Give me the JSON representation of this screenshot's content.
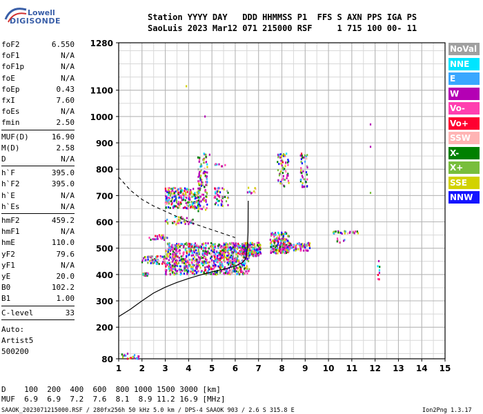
{
  "logo": {
    "line1": "Lowell",
    "line2": "DIGISONDE"
  },
  "header": {
    "line1": "Station YYYY DAY   DDD HHMMSS P1  FFS S AXN PPS IGA PS",
    "line2": "SaoLuis 2023 Mar12 071 215000 RSF     1 715 100 00- 11"
  },
  "params": {
    "group1": [
      {
        "k": "foF2",
        "v": "6.550"
      },
      {
        "k": "foF1",
        "v": "N/A"
      },
      {
        "k": "foF1p",
        "v": "N/A"
      },
      {
        "k": "foE",
        "v": "N/A"
      },
      {
        "k": "foEp",
        "v": "0.43"
      },
      {
        "k": "fxI",
        "v": "7.60"
      },
      {
        "k": "foEs",
        "v": "N/A"
      },
      {
        "k": "fmin",
        "v": "2.50"
      }
    ],
    "group2": [
      {
        "k": "MUF(D)",
        "v": "16.90"
      },
      {
        "k": "M(D)",
        "v": "2.58"
      },
      {
        "k": "D",
        "v": "N/A"
      }
    ],
    "group3": [
      {
        "k": "h`F",
        "v": "395.0"
      },
      {
        "k": "h`F2",
        "v": "395.0"
      },
      {
        "k": "h`E",
        "v": "N/A"
      },
      {
        "k": "h`Es",
        "v": "N/A"
      }
    ],
    "group4": [
      {
        "k": "hmF2",
        "v": "459.2"
      },
      {
        "k": "hmF1",
        "v": "N/A"
      },
      {
        "k": "hmE",
        "v": "110.0"
      },
      {
        "k": "yF2",
        "v": "79.6"
      },
      {
        "k": "yF1",
        "v": "N/A"
      },
      {
        "k": "yE",
        "v": "20.0"
      },
      {
        "k": "B0",
        "v": "102.2"
      },
      {
        "k": "B1",
        "v": "1.00"
      }
    ],
    "group5": [
      {
        "k": "C-level",
        "v": "33"
      }
    ],
    "auto": [
      "Auto:",
      "Artist5",
      "500200"
    ]
  },
  "legend": [
    {
      "label": "NoVal",
      "color": "#a0a0a0"
    },
    {
      "label": "NNE",
      "color": "#00e5ff"
    },
    {
      "label": "E",
      "color": "#39a7ff"
    },
    {
      "label": "W",
      "color": "#b400b4"
    },
    {
      "label": "Vo-",
      "color": "#ff3fb0"
    },
    {
      "label": "Vo+",
      "color": "#ff0030"
    },
    {
      "label": "SSW",
      "color": "#ffb4b4"
    },
    {
      "label": "X-",
      "color": "#008000"
    },
    {
      "label": "X+",
      "color": "#78be3c"
    },
    {
      "label": "SSE",
      "color": "#d2d200"
    },
    {
      "label": "NNW",
      "color": "#1414ff"
    }
  ],
  "footer": {
    "d_line": "D    100  200  400  600  800 1000 1500 3000 [km]",
    "muf_line": "MUF  6.9  6.9  7.2  7.6  8.1  8.9 11.2 16.9 [MHz]",
    "file_line": "SAAOK_2023071215000.RSF / 280fx256h 50 kHz 5.0 km / DPS-4 SAAOK 903 / 2.6 S 315.8 E",
    "version": "Ion2Png 1.3.17"
  },
  "chart_data": {
    "type": "scatter",
    "xlim": [
      1,
      15
    ],
    "ylim": [
      80,
      1280
    ],
    "x_ticks": [
      "1",
      "2",
      "3",
      "4",
      "5",
      "6",
      "7",
      "8",
      "9",
      "10",
      "11",
      "12",
      "13",
      "14",
      "15"
    ],
    "y_ticks": [
      "80",
      "200",
      "300",
      "400",
      "500",
      "600",
      "700",
      "800",
      "900",
      "1000",
      "1100",
      "1280"
    ],
    "grid": true,
    "x_minor_step": 0.5,
    "y_minor_step": 50,
    "profile_curve": [
      [
        1.0,
        240
      ],
      [
        1.5,
        268
      ],
      [
        2.0,
        300
      ],
      [
        2.5,
        330
      ],
      [
        3.0,
        352
      ],
      [
        3.5,
        370
      ],
      [
        4.0,
        385
      ],
      [
        4.5,
        398
      ],
      [
        5.0,
        410
      ],
      [
        5.5,
        420
      ],
      [
        6.0,
        432
      ],
      [
        6.3,
        445
      ],
      [
        6.45,
        460
      ],
      [
        6.52,
        500
      ],
      [
        6.55,
        560
      ],
      [
        6.56,
        680
      ]
    ],
    "dashed_curve": [
      [
        1.0,
        770
      ],
      [
        1.5,
        720
      ],
      [
        2.0,
        685
      ],
      [
        2.5,
        660
      ],
      [
        3.0,
        640
      ],
      [
        3.5,
        620
      ],
      [
        4.0,
        600
      ],
      [
        4.5,
        585
      ],
      [
        5.0,
        570
      ],
      [
        5.5,
        555
      ],
      [
        6.0,
        540
      ]
    ],
    "echo_clusters": [
      {
        "x": [
          3.0,
          6.6
        ],
        "y": [
          400,
          520
        ],
        "n": 900
      },
      {
        "x": [
          2.0,
          3.0
        ],
        "y": [
          440,
          470
        ],
        "n": 60
      },
      {
        "x": [
          2.0,
          2.3
        ],
        "y": [
          395,
          405
        ],
        "n": 20
      },
      {
        "x": [
          2.3,
          3.1
        ],
        "y": [
          530,
          550
        ],
        "n": 25
      },
      {
        "x": [
          6.3,
          7.1
        ],
        "y": [
          470,
          520
        ],
        "n": 160
      },
      {
        "x": [
          7.5,
          8.3
        ],
        "y": [
          480,
          560
        ],
        "n": 180
      },
      {
        "x": [
          7.9,
          9.2
        ],
        "y": [
          490,
          520
        ],
        "n": 90
      },
      {
        "x": [
          10.2,
          11.4
        ],
        "y": [
          555,
          565
        ],
        "n": 25
      },
      {
        "x": [
          10.3,
          10.7
        ],
        "y": [
          520,
          540
        ],
        "n": 8
      },
      {
        "x": [
          12.1,
          12.2
        ],
        "y": [
          340,
          460
        ],
        "n": 8
      },
      {
        "x": [
          3.0,
          4.5
        ],
        "y": [
          650,
          730
        ],
        "n": 220
      },
      {
        "x": [
          4.4,
          4.8
        ],
        "y": [
          640,
          860
        ],
        "n": 110
      },
      {
        "x": [
          5.1,
          5.7
        ],
        "y": [
          660,
          730
        ],
        "n": 45
      },
      {
        "x": [
          5.1,
          5.7
        ],
        "y": [
          810,
          820
        ],
        "n": 8
      },
      {
        "x": [
          3.0,
          4.2
        ],
        "y": [
          590,
          620
        ],
        "n": 40
      },
      {
        "x": [
          6.5,
          6.9
        ],
        "y": [
          700,
          730
        ],
        "n": 10
      },
      {
        "x": [
          7.8,
          8.3
        ],
        "y": [
          730,
          860
        ],
        "n": 60
      },
      {
        "x": [
          8.8,
          9.1
        ],
        "y": [
          730,
          860
        ],
        "n": 45
      },
      {
        "x": [
          1.0,
          1.9
        ],
        "y": [
          80,
          100
        ],
        "n": 25
      }
    ],
    "isolated_points": [
      [
        3.9,
        1115
      ],
      [
        4.7,
        1000
      ],
      [
        11.8,
        970
      ],
      [
        11.8,
        885
      ],
      [
        11.8,
        710
      ],
      [
        4.9,
        855
      ]
    ]
  }
}
